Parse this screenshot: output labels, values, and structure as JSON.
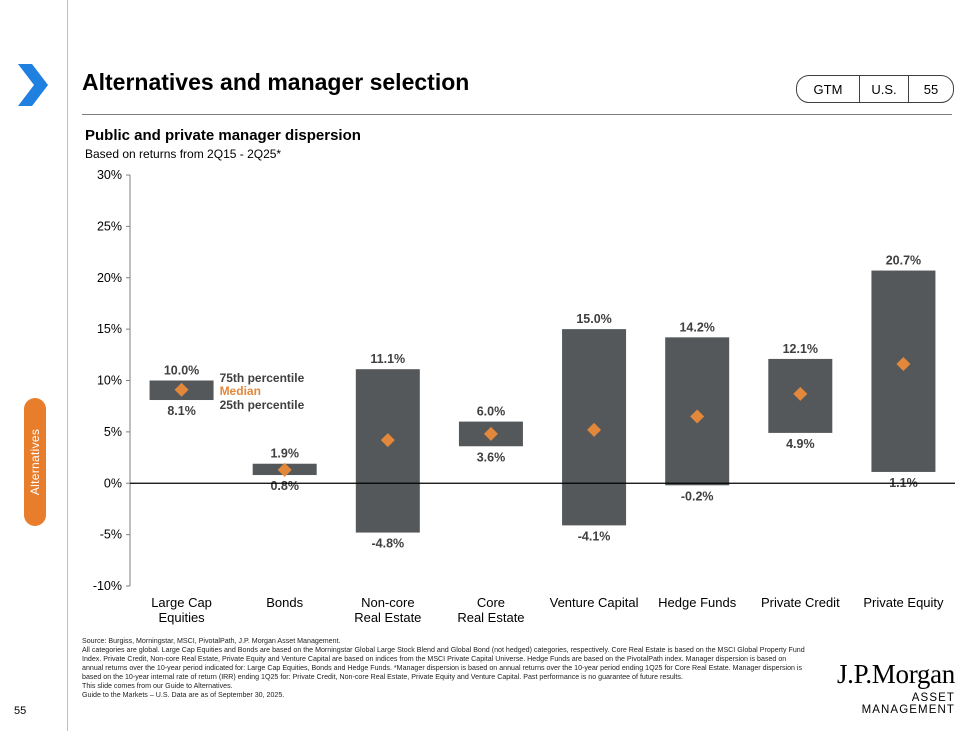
{
  "header": {
    "title": "Alternatives and manager selection",
    "badge": [
      "GTM",
      "U.S.",
      "55"
    ]
  },
  "side_tab": {
    "label": "Alternatives"
  },
  "page_number": "55",
  "chart_data": {
    "type": "floating-bar",
    "title": "Public and private manager dispersion",
    "subtitle": "Based on returns from 2Q15 - 2Q25*",
    "ylim": [
      -10,
      30
    ],
    "yticks": [
      -10,
      -5,
      0,
      5,
      10,
      15,
      20,
      25,
      30
    ],
    "ytick_labels": [
      "-10%",
      "-5%",
      "0%",
      "5%",
      "10%",
      "15%",
      "20%",
      "25%",
      "30%"
    ],
    "categories": [
      [
        "Large Cap",
        "Equities"
      ],
      [
        "Bonds"
      ],
      [
        "Non-core",
        "Real Estate"
      ],
      [
        "Core",
        "Real Estate"
      ],
      [
        "Venture Capital"
      ],
      [
        "Hedge Funds"
      ],
      [
        "Private Credit"
      ],
      [
        "Private Equity"
      ]
    ],
    "series": [
      {
        "name": "25th percentile",
        "values": [
          8.1,
          0.8,
          -4.8,
          3.6,
          -4.1,
          -0.2,
          4.9,
          1.1
        ]
      },
      {
        "name": "75th percentile",
        "values": [
          10.0,
          1.9,
          11.1,
          6.0,
          15.0,
          14.2,
          12.1,
          20.7
        ]
      },
      {
        "name": "Median",
        "values": [
          9.1,
          1.3,
          4.2,
          4.8,
          5.2,
          6.5,
          8.7,
          11.6
        ]
      }
    ],
    "top_labels": [
      "10.0%",
      "1.9%",
      "11.1%",
      "6.0%",
      "15.0%",
      "14.2%",
      "12.1%",
      "20.7%"
    ],
    "bottom_labels": [
      "8.1%",
      "0.8%",
      "-4.8%",
      "3.6%",
      "-4.1%",
      "-0.2%",
      "4.9%",
      "1.1%"
    ],
    "legend": {
      "p75": "75th percentile",
      "median": "Median",
      "p25": "25th percentile"
    },
    "colors": {
      "bar": "#54585a",
      "median": "#e3883b",
      "legend_median": "#e3883b"
    }
  },
  "footnotes": [
    "Source: Burgiss, Morningstar, MSCI, PivotalPath, J.P. Morgan Asset Management.",
    "All categories are global. Large Cap Equities and Bonds are based on the Morningstar Global Large Stock Blend and Global Bond (not hedged) categories, respectively. Core Real Estate is based on the MSCI Global Property Fund Index. Private Credit, Non-core Real Estate, Private Equity and Venture Capital are based on indices from the MSCI Private Capital Universe. Hedge Funds are based on the PivotalPath index. Manager dispersion is based on annual returns over the 10-year period indicated for: Large Cap Equities, Bonds and Hedge Funds. *Manager dispersion is based on annual returns over the 10-year period ending 1Q25 for Core Real Estate. Manager dispersion is based on the 10-year internal rate of return (IRR) ending 1Q25 for: Private Credit, Non-core Real Estate, Private Equity and Venture Capital. Past performance is no guarantee of future results.",
    "This slide comes from our Guide to Alternatives.",
    "Guide to the Markets – U.S. Data are as of September 30, 2025."
  ],
  "logo": {
    "line1": "J.P.Morgan",
    "line2": "ASSET MANAGEMENT"
  }
}
